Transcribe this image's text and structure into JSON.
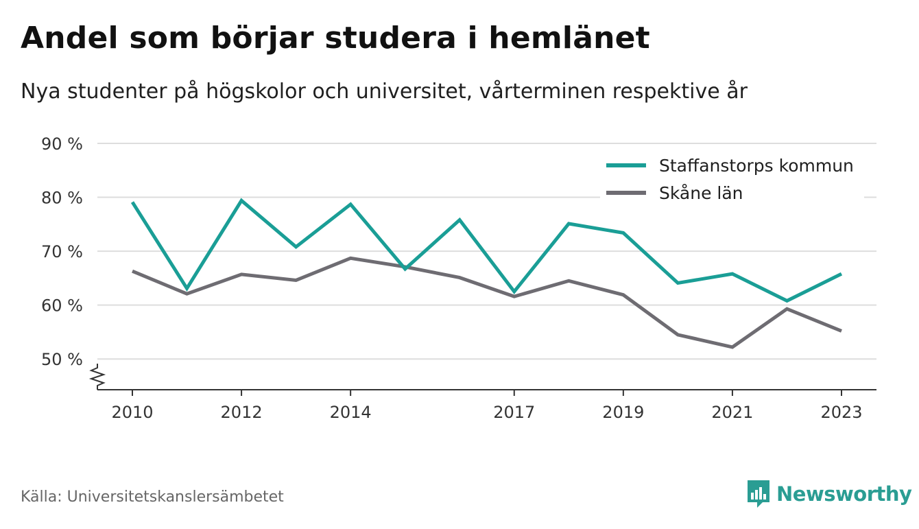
{
  "title": "Andel som börjar studera i hemlänet",
  "subtitle": "Nya studenter på högskolor och universitet, vårterminen respektive år",
  "source": "Källa: Universitetskanslersämbetet",
  "brand": "Newsworthy",
  "colors": {
    "staffanstorp": "#1a9e96",
    "skane": "#6e6c72",
    "grid": "#dddddd",
    "axis": "#333333",
    "brand": "#2a9d93"
  },
  "chart_data": {
    "type": "line",
    "title": "Andel som börjar studera i hemlänet",
    "subtitle": "Nya studenter på högskolor och universitet, vårterminen respektive år",
    "x": [
      2010,
      2011,
      2012,
      2013,
      2014,
      2015,
      2016,
      2017,
      2018,
      2019,
      2020,
      2021,
      2022,
      2023
    ],
    "x_ticks": [
      "2010",
      "2012",
      "2014",
      "2017",
      "2019",
      "2021",
      "2023"
    ],
    "y_ticks": [
      "50 %",
      "60 %",
      "70 %",
      "80 %",
      "90 %"
    ],
    "y_tick_values": [
      50,
      60,
      70,
      80,
      90
    ],
    "ylim": [
      44.3,
      90
    ],
    "y_axis_break": true,
    "grid": true,
    "legend_position": "top-right",
    "series": [
      {
        "name": "Staffanstorps kommun",
        "color": "#1a9e96",
        "values": [
          79.1,
          63.1,
          79.4,
          70.8,
          78.7,
          66.7,
          75.8,
          62.5,
          75.1,
          73.4,
          64.1,
          65.8,
          60.8,
          65.8
        ]
      },
      {
        "name": "Skåne län",
        "color": "#6e6c72",
        "values": [
          66.3,
          62.1,
          65.7,
          64.6,
          68.7,
          67.1,
          65.1,
          61.6,
          64.5,
          61.9,
          54.5,
          52.2,
          59.3,
          55.2
        ]
      }
    ]
  }
}
